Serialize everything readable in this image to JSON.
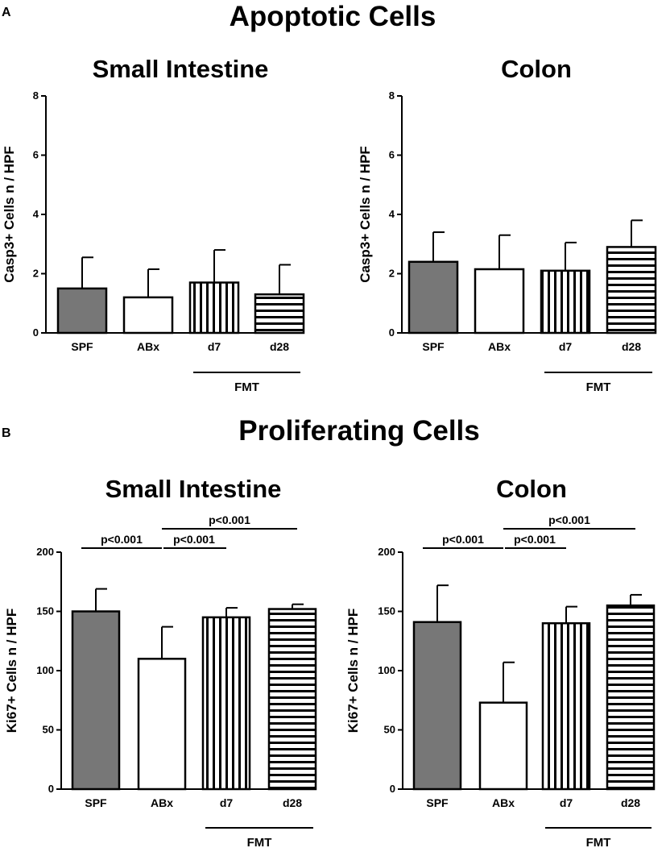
{
  "panel_a": {
    "letter": "A",
    "title": "Apoptotic Cells"
  },
  "panel_b": {
    "letter": "B",
    "title": "Proliferating Cells"
  },
  "chart_data": [
    {
      "type": "bar",
      "panel": "A",
      "title": "Small Intestine",
      "ylabel": "Casp3+ Cells n / HPF",
      "xlabel": "",
      "ylim": [
        0,
        8
      ],
      "yticks": [
        "0",
        "2",
        "4",
        "6",
        "8"
      ],
      "categories": [
        "SPF",
        "ABx",
        "d7",
        "d28"
      ],
      "values": [
        1.5,
        1.2,
        1.7,
        1.3
      ],
      "errors": [
        1.05,
        0.95,
        1.1,
        1.0
      ],
      "fills": [
        "gray",
        "white",
        "vertical-stripes",
        "horizontal-stripes"
      ],
      "group_label": "FMT",
      "group_range": [
        "d7",
        "d28"
      ],
      "significance": []
    },
    {
      "type": "bar",
      "panel": "A",
      "title": "Colon",
      "ylabel": "Casp3+ Cells n / HPF",
      "xlabel": "",
      "ylim": [
        0,
        8
      ],
      "yticks": [
        "0",
        "2",
        "4",
        "6",
        "8"
      ],
      "categories": [
        "SPF",
        "ABx",
        "d7",
        "d28"
      ],
      "values": [
        2.4,
        2.15,
        2.1,
        2.9
      ],
      "errors": [
        1.0,
        1.15,
        0.95,
        0.9
      ],
      "fills": [
        "gray",
        "white",
        "vertical-stripes",
        "horizontal-stripes"
      ],
      "group_label": "FMT",
      "group_range": [
        "d7",
        "d28"
      ],
      "significance": []
    },
    {
      "type": "bar",
      "panel": "B",
      "title": "Small Intestine",
      "ylabel": "Ki67+ Cells n / HPF",
      "xlabel": "",
      "ylim": [
        0,
        200
      ],
      "yticks": [
        "0",
        "50",
        "100",
        "150",
        "200"
      ],
      "categories": [
        "SPF",
        "ABx",
        "d7",
        "d28"
      ],
      "values": [
        150,
        110,
        145,
        152
      ],
      "errors": [
        19,
        27,
        8,
        4
      ],
      "fills": [
        "gray",
        "white",
        "vertical-stripes",
        "horizontal-stripes"
      ],
      "group_label": "FMT",
      "group_range": [
        "d7",
        "d28"
      ],
      "significance": [
        {
          "from": "SPF",
          "to": "ABx",
          "label": "p<0.001",
          "level": 1
        },
        {
          "from": "ABx",
          "to": "d7",
          "label": "p<0.001",
          "level": 1
        },
        {
          "from": "ABx",
          "to": "d28",
          "label": "p<0.001",
          "level": 2
        }
      ]
    },
    {
      "type": "bar",
      "panel": "B",
      "title": "Colon",
      "ylabel": "Ki67+ Cells n / HPF",
      "xlabel": "",
      "ylim": [
        0,
        200
      ],
      "yticks": [
        "0",
        "50",
        "100",
        "150",
        "200"
      ],
      "categories": [
        "SPF",
        "ABx",
        "d7",
        "d28"
      ],
      "values": [
        141,
        73,
        140,
        155
      ],
      "errors": [
        31,
        34,
        14,
        9
      ],
      "fills": [
        "gray",
        "white",
        "vertical-stripes",
        "horizontal-stripes"
      ],
      "group_label": "FMT",
      "group_range": [
        "d7",
        "d28"
      ],
      "significance": [
        {
          "from": "SPF",
          "to": "ABx",
          "label": "p<0.001",
          "level": 1
        },
        {
          "from": "ABx",
          "to": "d7",
          "label": "p<0.001",
          "level": 1
        },
        {
          "from": "ABx",
          "to": "d28",
          "label": "p<0.001",
          "level": 2
        }
      ]
    }
  ]
}
